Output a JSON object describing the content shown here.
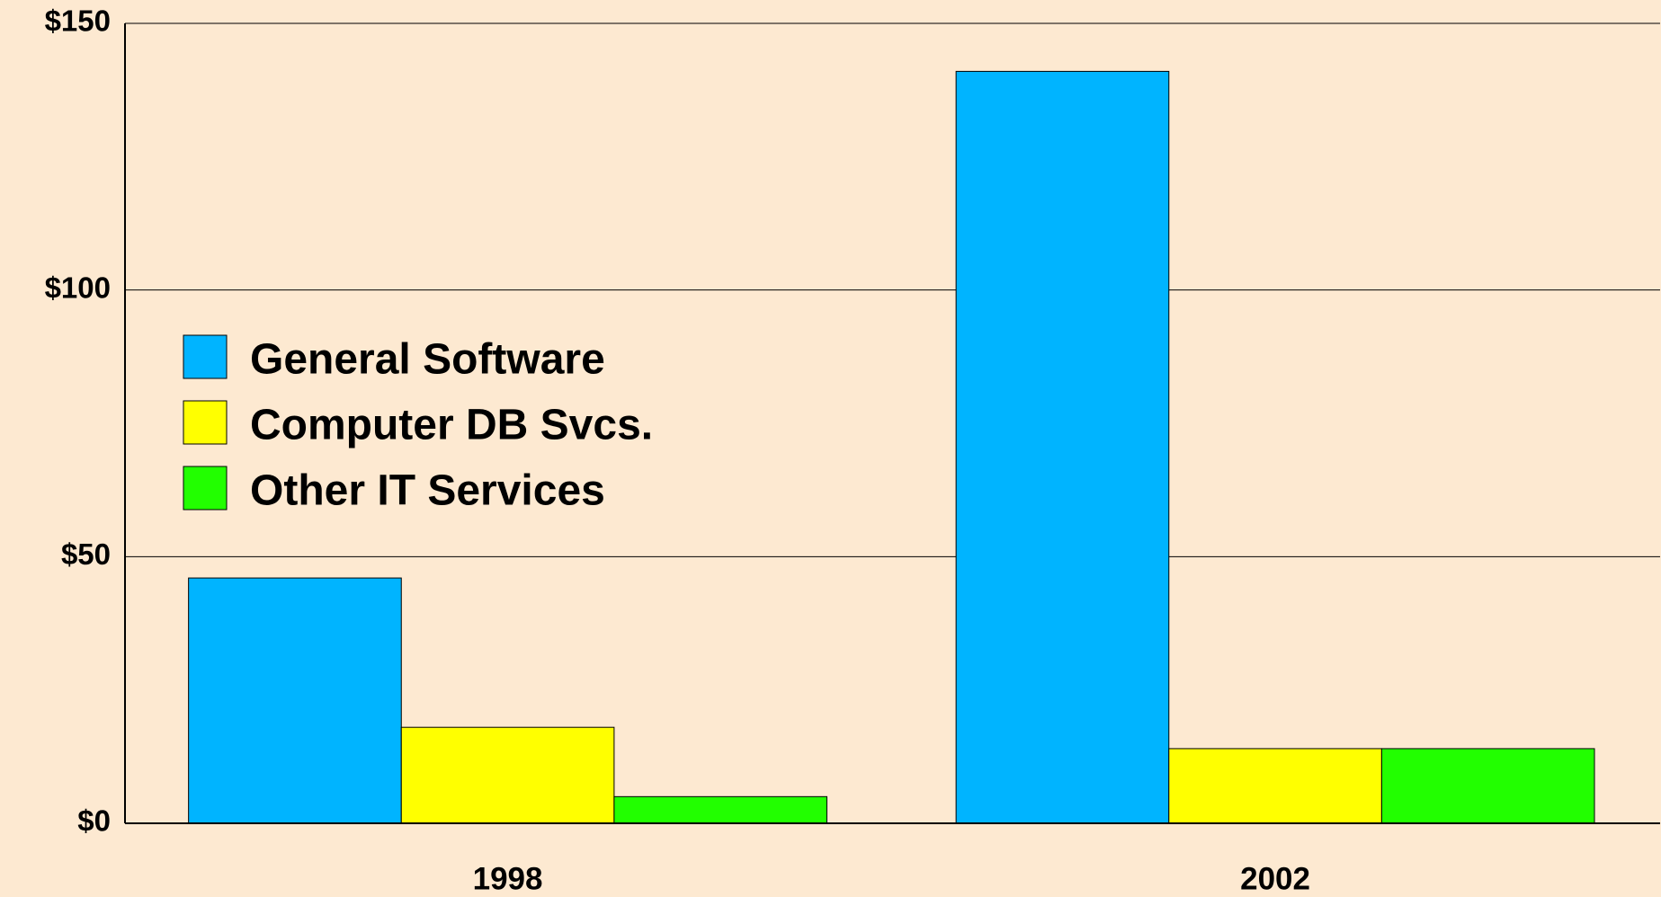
{
  "chart_data": {
    "type": "bar",
    "categories": [
      "1998",
      "2002"
    ],
    "series": [
      {
        "name": "General Software",
        "color": "#00b4ff",
        "values": [
          46,
          141
        ]
      },
      {
        "name": "Computer DB Svcs.",
        "color": "#ffff00",
        "values": [
          18,
          14
        ]
      },
      {
        "name": "Other IT Services",
        "color": "#22ff00",
        "values": [
          5,
          14
        ]
      }
    ],
    "ylim": [
      0,
      150
    ],
    "yticks": [
      {
        "value": 0,
        "label": "$0"
      },
      {
        "value": 50,
        "label": "$50"
      },
      {
        "value": 100,
        "label": "$100"
      },
      {
        "value": 150,
        "label": "$150"
      }
    ],
    "grid": true,
    "legend": "upper left"
  }
}
